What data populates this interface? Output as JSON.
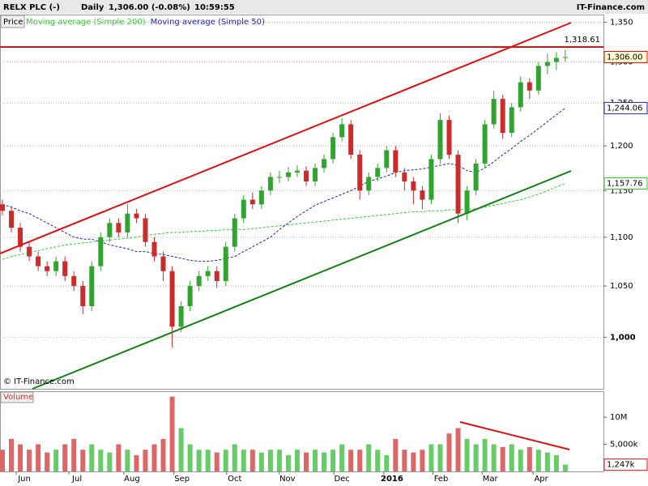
{
  "header": {
    "symbol": "RELX PLC (-)",
    "period": "Daily",
    "quote": "1,306.00 (-0.08%)",
    "time": "10:59:55",
    "brand": "IT-Finance.com",
    "copyright": "© IT-Finance.com"
  },
  "chart_data": [
    {
      "type": "candlestick",
      "price_label": "Price",
      "log_scale": true,
      "grid": true,
      "up_color": "#2fa52f",
      "down_color": "#cc2b2b",
      "ylim": [
        952,
        1360
      ],
      "xlim": [
        -0.27,
        67.27
      ],
      "yticks": [
        {
          "value": 1000,
          "label": "1,000"
        },
        {
          "value": 1050,
          "label": "1,050"
        },
        {
          "value": 1100,
          "label": "1,100"
        },
        {
          "value": 1150,
          "label": "1,150"
        },
        {
          "value": 1200,
          "label": "1,200"
        },
        {
          "value": 1250,
          "label": "1,250"
        },
        {
          "value": 1300,
          "label": "1,300"
        },
        {
          "value": 1350,
          "label": "1,350"
        }
      ],
      "open": [
        1135,
        1128,
        1110,
        1090,
        1080,
        1070,
        1065,
        1075,
        1060,
        1050,
        1030,
        1070,
        1100,
        1115,
        1105,
        1125,
        1120,
        1095,
        1080,
        1065,
        1010,
        1030,
        1050,
        1060,
        1065,
        1055,
        1090,
        1120,
        1140,
        1135,
        1150,
        1165,
        1165,
        1170,
        1172,
        1160,
        1175,
        1185,
        1210,
        1225,
        1190,
        1150,
        1165,
        1175,
        1195,
        1170,
        1160,
        1150,
        1140,
        1185,
        1230,
        1190,
        1125,
        1150,
        1180,
        1225,
        1255,
        1215,
        1245,
        1275,
        1265,
        1295,
        1300,
        1305
      ],
      "high": [
        1140,
        1133,
        1115,
        1095,
        1085,
        1075,
        1080,
        1080,
        1065,
        1055,
        1075,
        1105,
        1120,
        1120,
        1135,
        1130,
        1125,
        1100,
        1085,
        1070,
        1035,
        1055,
        1065,
        1070,
        1070,
        1095,
        1125,
        1145,
        1148,
        1155,
        1170,
        1172,
        1176,
        1178,
        1177,
        1180,
        1190,
        1215,
        1232,
        1230,
        1195,
        1170,
        1180,
        1200,
        1200,
        1175,
        1165,
        1155,
        1190,
        1238,
        1235,
        1195,
        1155,
        1185,
        1230,
        1265,
        1260,
        1250,
        1282,
        1280,
        1300,
        1310,
        1312,
        1315
      ],
      "low": [
        1123,
        1105,
        1085,
        1075,
        1065,
        1060,
        1060,
        1055,
        1045,
        1022,
        1025,
        1065,
        1095,
        1100,
        1100,
        1115,
        1090,
        1075,
        1055,
        990,
        1005,
        1025,
        1045,
        1055,
        1048,
        1050,
        1085,
        1115,
        1130,
        1130,
        1145,
        1158,
        1160,
        1165,
        1155,
        1155,
        1170,
        1180,
        1205,
        1185,
        1140,
        1145,
        1160,
        1170,
        1165,
        1150,
        1135,
        1130,
        1135,
        1180,
        1185,
        1115,
        1118,
        1145,
        1175,
        1220,
        1208,
        1210,
        1240,
        1255,
        1260,
        1285,
        1290,
        1300
      ],
      "close": [
        1128,
        1110,
        1090,
        1080,
        1070,
        1065,
        1075,
        1060,
        1050,
        1030,
        1070,
        1100,
        1115,
        1105,
        1125,
        1120,
        1095,
        1080,
        1065,
        1010,
        1030,
        1050,
        1060,
        1065,
        1055,
        1090,
        1120,
        1140,
        1135,
        1150,
        1165,
        1165,
        1170,
        1172,
        1160,
        1175,
        1185,
        1210,
        1225,
        1190,
        1150,
        1165,
        1175,
        1195,
        1170,
        1160,
        1150,
        1140,
        1185,
        1230,
        1190,
        1125,
        1150,
        1180,
        1225,
        1255,
        1215,
        1245,
        1275,
        1265,
        1295,
        1300,
        1305,
        1306
      ],
      "last_price": {
        "value": 1306,
        "label": "1,306.00"
      },
      "resistance": {
        "value": 1318.61,
        "label": "1,318.61"
      },
      "series": [
        {
          "name": "Moving average (Simple 200)",
          "color": "#33cc33",
          "last_label": {
            "value": 1157.76,
            "label": "1,157.76"
          },
          "values": [
            1077,
            1080,
            1082,
            1084,
            1086,
            1088,
            1090,
            1092,
            1093,
            1094,
            1095,
            1096,
            1097,
            1098,
            1099,
            1100,
            1102,
            1103,
            1104,
            1105,
            1105,
            1106,
            1106,
            1107,
            1107,
            1108,
            1108,
            1108,
            1109,
            1110,
            1111,
            1112,
            1113,
            1114,
            1115,
            1116,
            1117,
            1118,
            1119,
            1120,
            1121,
            1122,
            1123,
            1124,
            1125,
            1126,
            1127,
            1127,
            1128,
            1128,
            1129,
            1129,
            1130,
            1130,
            1132,
            1134,
            1136,
            1138,
            1140,
            1143,
            1146,
            1150,
            1154,
            1157.76
          ]
        },
        {
          "name": "Moving average (Simple 50)",
          "color": "#2222cc",
          "last_label": {
            "value": 1244.06,
            "label": "1,244.06"
          },
          "values": [
            1135,
            1132,
            1128,
            1125,
            1120,
            1115,
            1110,
            1105,
            1100,
            1098,
            1098,
            1095,
            1092,
            1090,
            1088,
            1085,
            1085,
            1083,
            1082,
            1080,
            1078,
            1076,
            1075,
            1075,
            1076,
            1078,
            1080,
            1085,
            1090,
            1095,
            1100,
            1108,
            1115,
            1122,
            1128,
            1134,
            1138,
            1142,
            1146,
            1150,
            1155,
            1160,
            1163,
            1166,
            1170,
            1172,
            1173,
            1174,
            1176,
            1178,
            1180,
            1178,
            1172,
            1170,
            1175,
            1182,
            1190,
            1197,
            1205,
            1212,
            1220,
            1228,
            1236,
            1244.06
          ]
        }
      ]
    },
    {
      "type": "bar",
      "title": "Volume",
      "ylim": [
        0,
        14.8
      ],
      "xlim": [
        -0.27,
        67.27
      ],
      "yticks": [
        {
          "value": 5,
          "label": "5,000k"
        },
        {
          "value": 10,
          "label": "10M"
        }
      ],
      "xticks": [
        {
          "value": 2.45,
          "label": "Jun"
        },
        {
          "value": 8.35,
          "label": "Jul"
        },
        {
          "value": 14.5,
          "label": "Aug"
        },
        {
          "value": 20.1,
          "label": "Sep"
        },
        {
          "value": 26.0,
          "label": "Oct"
        },
        {
          "value": 31.9,
          "label": "Nov"
        },
        {
          "value": 38.0,
          "label": "Dec"
        },
        {
          "value": 43.6,
          "label": "2016"
        },
        {
          "value": 49.1,
          "label": "Feb"
        },
        {
          "value": 54.6,
          "label": "Mar"
        },
        {
          "value": 60.3,
          "label": "Apr"
        }
      ],
      "values": [
        4,
        6,
        5,
        4,
        5,
        3.5,
        4,
        5,
        6,
        4,
        5,
        4,
        3.5,
        5,
        4,
        3,
        4,
        5,
        6,
        13.8,
        8,
        5,
        4,
        4,
        3.5,
        4,
        5,
        4,
        4,
        3.5,
        4,
        4,
        3,
        4,
        3.5,
        4,
        3.5,
        4,
        5,
        4,
        4,
        5,
        4,
        3,
        6,
        4,
        3.5,
        4,
        5,
        5,
        7,
        8,
        6,
        5,
        6,
        5,
        4.5,
        5,
        4,
        4.5,
        4,
        3.5,
        3,
        1.247
      ],
      "last_label": {
        "value": 1.247,
        "label": "1,247k"
      }
    }
  ]
}
